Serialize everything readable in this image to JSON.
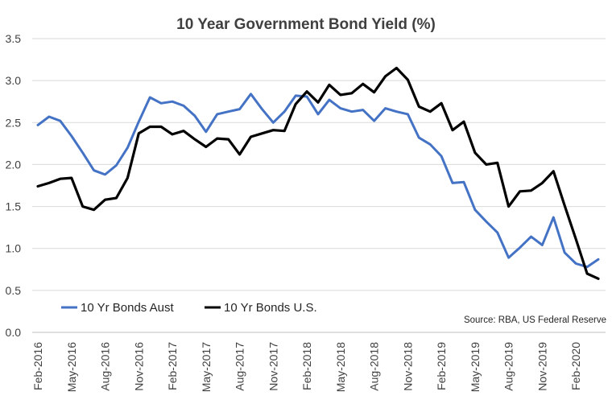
{
  "chart_data": {
    "type": "line",
    "title": "10 Year Government Bond Yield (%)",
    "source": "Source: RBA, US Federal Reserve",
    "ylim": [
      0,
      3.5
    ],
    "yticks": [
      "0.0",
      "0.5",
      "1.0",
      "1.5",
      "2.0",
      "2.5",
      "3.0",
      "3.5"
    ],
    "grid": true,
    "legend_position": "bottom-left",
    "x": [
      "Feb-2016",
      "Mar-2016",
      "Apr-2016",
      "May-2016",
      "Jun-2016",
      "Jul-2016",
      "Aug-2016",
      "Sep-2016",
      "Oct-2016",
      "Nov-2016",
      "Dec-2016",
      "Jan-2017",
      "Feb-2017",
      "Mar-2017",
      "Apr-2017",
      "May-2017",
      "Jun-2017",
      "Jul-2017",
      "Aug-2017",
      "Sep-2017",
      "Oct-2017",
      "Nov-2017",
      "Dec-2017",
      "Jan-2018",
      "Feb-2018",
      "Mar-2018",
      "Apr-2018",
      "May-2018",
      "Jun-2018",
      "Jul-2018",
      "Aug-2018",
      "Sep-2018",
      "Oct-2018",
      "Nov-2018",
      "Dec-2018",
      "Jan-2019",
      "Feb-2019",
      "Mar-2019",
      "Apr-2019",
      "May-2019",
      "Jun-2019",
      "Jul-2019",
      "Aug-2019",
      "Sep-2019",
      "Oct-2019",
      "Nov-2019",
      "Dec-2019",
      "Jan-2020",
      "Feb-2020",
      "Mar-2020",
      "Apr-2020"
    ],
    "x_tick_labels": [
      "Feb-2016",
      "May-2016",
      "Aug-2016",
      "Nov-2016",
      "Feb-2017",
      "May-2017",
      "Aug-2017",
      "Nov-2017",
      "Feb-2018",
      "May-2018",
      "Aug-2018",
      "Nov-2018",
      "Feb-2019",
      "May-2019",
      "Aug-2019",
      "Nov-2019",
      "Feb-2020"
    ],
    "series": [
      {
        "name": "10 Yr Bonds Aust",
        "color": "#4472C4",
        "values": [
          2.47,
          2.57,
          2.52,
          2.34,
          2.14,
          1.93,
          1.88,
          1.99,
          2.2,
          2.51,
          2.8,
          2.73,
          2.75,
          2.7,
          2.58,
          2.39,
          2.6,
          2.63,
          2.66,
          2.84,
          2.66,
          2.5,
          2.63,
          2.82,
          2.81,
          2.6,
          2.77,
          2.67,
          2.63,
          2.65,
          2.52,
          2.67,
          2.63,
          2.6,
          2.32,
          2.24,
          2.1,
          1.78,
          1.79,
          1.46,
          1.32,
          1.19,
          0.89,
          1.01,
          1.14,
          1.04,
          1.37,
          0.95,
          0.82,
          0.78,
          0.87
        ]
      },
      {
        "name": "10 Yr Bonds U.S.",
        "color": "#000000",
        "values": [
          1.74,
          1.78,
          1.83,
          1.84,
          1.5,
          1.46,
          1.58,
          1.6,
          1.84,
          2.37,
          2.45,
          2.45,
          2.36,
          2.4,
          2.3,
          2.21,
          2.31,
          2.3,
          2.12,
          2.33,
          2.37,
          2.41,
          2.4,
          2.72,
          2.87,
          2.74,
          2.95,
          2.83,
          2.85,
          2.96,
          2.86,
          3.05,
          3.15,
          3.01,
          2.69,
          2.63,
          2.73,
          2.41,
          2.51,
          2.14,
          2.0,
          2.02,
          1.5,
          1.68,
          1.69,
          1.78,
          1.92,
          1.51,
          1.11,
          0.7,
          0.64
        ]
      }
    ]
  }
}
